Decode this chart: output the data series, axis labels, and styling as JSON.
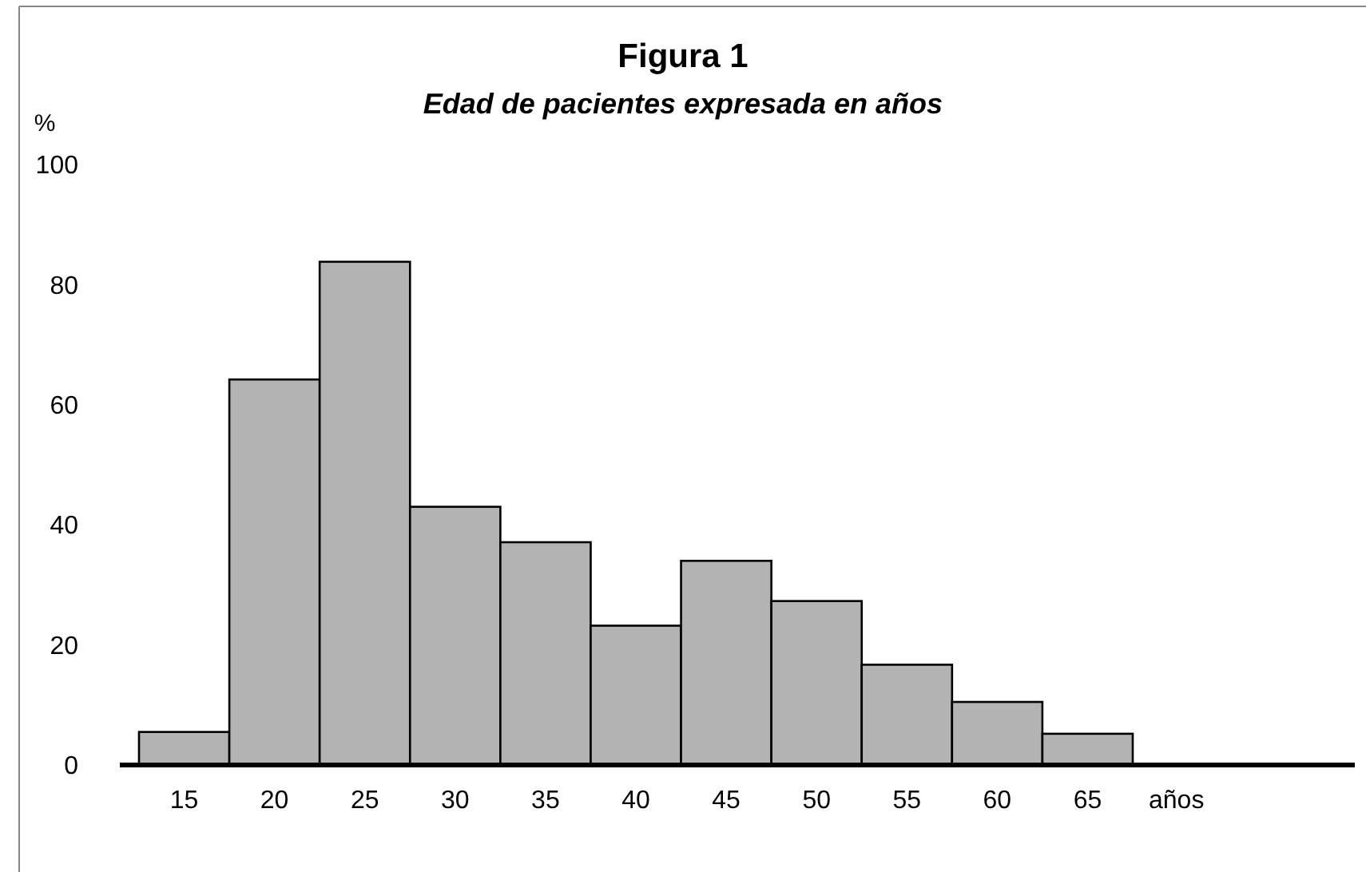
{
  "chart_data": {
    "type": "bar",
    "title": "Figura 1",
    "subtitle": "Edad de pacientes expresada en años",
    "ylabel": "%",
    "xlabel": "años",
    "categories": [
      "15",
      "20",
      "25",
      "30",
      "35",
      "40",
      "45",
      "50",
      "55",
      "60",
      "65"
    ],
    "values": [
      5.5,
      64.2,
      83.8,
      43.0,
      37.1,
      23.2,
      34.0,
      27.3,
      16.7,
      10.5,
      5.2
    ],
    "color": "#b3b3b3",
    "ylim": [
      0,
      100
    ],
    "yticks": [
      0,
      20,
      40,
      60,
      80,
      100
    ],
    "grid": false
  }
}
